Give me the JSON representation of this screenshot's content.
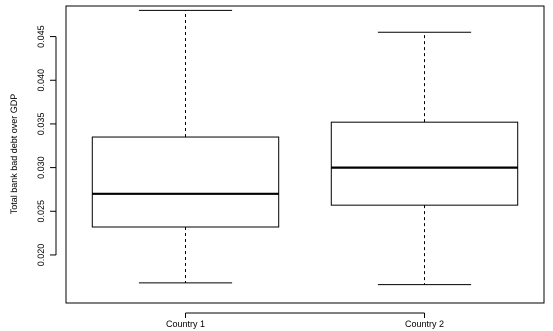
{
  "chart_data": {
    "type": "boxplot",
    "title": "",
    "xlabel": "",
    "ylabel": "Total bank bad debt over GDP",
    "ylim": [
      0.0145,
      0.0485
    ],
    "y_ticks": [
      0.02,
      0.025,
      0.03,
      0.035,
      0.04,
      0.045
    ],
    "y_tick_labels": [
      "0.020",
      "0.025",
      "0.030",
      "0.035",
      "0.040",
      "0.045"
    ],
    "categories": [
      "Country 1",
      "Country 2"
    ],
    "boxes": [
      {
        "category": "Country 1",
        "whisker_low": 0.0168,
        "q1": 0.0232,
        "median": 0.027,
        "q3": 0.0335,
        "whisker_high": 0.048
      },
      {
        "category": "Country 2",
        "whisker_low": 0.0166,
        "q1": 0.0257,
        "median": 0.03,
        "q3": 0.0352,
        "whisker_high": 0.0455
      }
    ],
    "grid": false,
    "legend": "none"
  }
}
